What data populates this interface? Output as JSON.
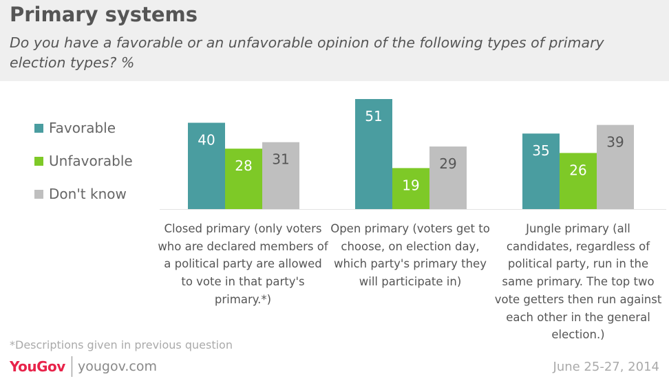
{
  "header": {
    "title": "Primary systems",
    "subtitle": "Do you have a favorable or an unfavorable opinion of the following types of primary election types? %"
  },
  "colors": {
    "favorable": "#4a9da0",
    "unfavorable": "#7ec927",
    "dont_know": "#bfbfbf",
    "header_bg": "#efefef",
    "brand": "#e8234a"
  },
  "chart_data": {
    "type": "bar",
    "title": "Primary systems",
    "subtitle": "Do you have a favorable or an unfavorable opinion of the following types of primary election types? %",
    "categories": [
      "Closed primary (only voters who are declared members of a political party are allowed to vote in that party's primary.*)",
      "Open primary (voters get to choose, on election day, which party's primary they will participate in)",
      "Jungle primary (all candidates, regardless of political party, run in the same primary. The top two vote getters then run against each other in the general election.)"
    ],
    "series": [
      {
        "name": "Favorable",
        "values": [
          40,
          51,
          35
        ]
      },
      {
        "name": "Unfavorable",
        "values": [
          28,
          19,
          26
        ]
      },
      {
        "name": "Don't know",
        "values": [
          31,
          29,
          39
        ]
      }
    ],
    "ylim": [
      0,
      51
    ],
    "legend_position": "left",
    "grid": false
  },
  "legend": {
    "items": [
      {
        "label": "Favorable"
      },
      {
        "label": "Unfavorable"
      },
      {
        "label": "Don't know"
      }
    ]
  },
  "footer": {
    "footnote": "*Descriptions given in previous question",
    "logo": "YouGov",
    "site": "yougov.com",
    "date": "June 25-27, 2014"
  }
}
